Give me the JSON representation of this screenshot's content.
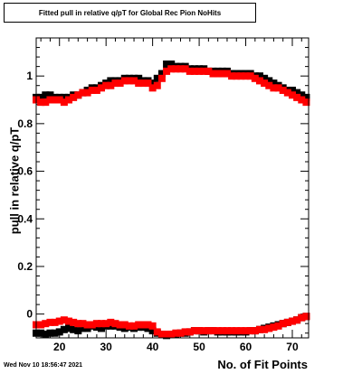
{
  "chart_data": {
    "type": "scatter",
    "title": "Fitted pull in relative q/pT for Global Rec Pion NoHits",
    "xlabel": "No. of Fit Points",
    "ylabel": "pull in relative q/pT",
    "xlim": [
      15,
      73.5
    ],
    "ylim": [
      -0.1,
      1.16
    ],
    "xticks": [
      "20",
      "30",
      "40",
      "50",
      "60",
      "70"
    ],
    "yticks": [
      "0",
      "0.2",
      "0.4",
      "0.6",
      "0.8",
      "1"
    ],
    "grid": false,
    "colors": {
      "black": "#000000",
      "red": "#ff0000"
    },
    "series": [
      {
        "color": "#000000",
        "x": [
          15,
          16,
          17,
          18,
          19,
          20,
          21,
          22,
          23,
          24,
          25,
          26,
          27,
          28,
          29,
          30,
          31,
          32,
          33,
          34,
          35,
          36,
          37,
          38,
          39,
          40,
          41,
          42,
          43,
          44,
          45,
          46,
          47,
          48,
          49,
          50,
          51,
          52,
          53,
          54,
          55,
          56,
          57,
          58,
          59,
          60,
          61,
          62,
          63,
          64,
          65,
          66,
          67,
          68,
          69,
          70,
          71,
          72,
          73
        ],
        "y": [
          0.91,
          0.91,
          0.92,
          0.92,
          0.91,
          0.91,
          0.91,
          0.91,
          0.92,
          0.92,
          0.93,
          0.94,
          0.95,
          0.95,
          0.96,
          0.97,
          0.98,
          0.98,
          0.98,
          0.99,
          0.99,
          0.99,
          0.99,
          0.98,
          0.98,
          0.97,
          0.99,
          1.01,
          1.05,
          1.05,
          1.04,
          1.04,
          1.04,
          1.03,
          1.03,
          1.03,
          1.03,
          1.02,
          1.02,
          1.02,
          1.02,
          1.02,
          1.01,
          1.01,
          1.01,
          1.01,
          1.01,
          1.0,
          1.0,
          0.99,
          0.98,
          0.97,
          0.96,
          0.95,
          0.94,
          0.94,
          0.93,
          0.92,
          0.91
        ]
      },
      {
        "color": "#ff0000",
        "x": [
          15,
          16,
          17,
          18,
          19,
          20,
          21,
          22,
          23,
          24,
          25,
          26,
          27,
          28,
          29,
          30,
          31,
          32,
          33,
          34,
          35,
          36,
          37,
          38,
          39,
          40,
          41,
          42,
          43,
          44,
          45,
          46,
          47,
          48,
          49,
          50,
          51,
          52,
          53,
          54,
          55,
          56,
          57,
          58,
          59,
          60,
          61,
          62,
          63,
          64,
          65,
          66,
          67,
          68,
          69,
          70,
          71,
          72,
          73
        ],
        "y": [
          0.9,
          0.89,
          0.89,
          0.9,
          0.9,
          0.9,
          0.89,
          0.9,
          0.91,
          0.92,
          0.93,
          0.93,
          0.94,
          0.94,
          0.95,
          0.96,
          0.96,
          0.97,
          0.97,
          0.98,
          0.98,
          0.98,
          0.97,
          0.97,
          0.97,
          0.95,
          0.96,
          0.99,
          1.02,
          1.03,
          1.03,
          1.03,
          1.03,
          1.02,
          1.02,
          1.02,
          1.02,
          1.02,
          1.01,
          1.01,
          1.01,
          1.01,
          1.0,
          1.0,
          1.0,
          1.0,
          1.0,
          0.99,
          0.98,
          0.97,
          0.96,
          0.95,
          0.95,
          0.94,
          0.93,
          0.92,
          0.91,
          0.9,
          0.89
        ]
      },
      {
        "color": "#000000",
        "x": [
          15,
          16,
          17,
          18,
          19,
          20,
          21,
          22,
          23,
          24,
          25,
          26,
          27,
          28,
          29,
          30,
          31,
          32,
          33,
          34,
          35,
          36,
          37,
          38,
          39,
          40,
          41,
          42,
          43,
          44,
          45,
          46,
          47,
          48,
          49,
          50,
          51,
          52,
          53,
          54,
          55,
          56,
          57,
          58,
          59,
          60,
          61,
          62,
          63,
          64,
          65,
          66,
          67,
          68,
          69,
          70,
          71,
          72,
          73
        ],
        "y": [
          -0.08,
          -0.08,
          -0.085,
          -0.08,
          -0.08,
          -0.075,
          -0.065,
          -0.06,
          -0.065,
          -0.07,
          -0.06,
          -0.06,
          -0.05,
          -0.055,
          -0.06,
          -0.05,
          -0.05,
          -0.05,
          -0.055,
          -0.06,
          -0.055,
          -0.06,
          -0.055,
          -0.055,
          -0.06,
          -0.07,
          -0.08,
          -0.085,
          -0.09,
          -0.085,
          -0.085,
          -0.08,
          -0.08,
          -0.075,
          -0.07,
          -0.07,
          -0.075,
          -0.07,
          -0.07,
          -0.075,
          -0.075,
          -0.075,
          -0.075,
          -0.075,
          -0.075,
          -0.075,
          -0.07,
          -0.07,
          -0.065,
          -0.06,
          -0.055,
          -0.05,
          -0.045,
          -0.04,
          -0.035,
          -0.03,
          -0.025,
          -0.015,
          -0.01
        ]
      },
      {
        "color": "#ff0000",
        "x": [
          15,
          16,
          17,
          18,
          19,
          20,
          21,
          22,
          23,
          24,
          25,
          26,
          27,
          28,
          29,
          30,
          31,
          32,
          33,
          34,
          35,
          36,
          37,
          38,
          39,
          40,
          41,
          42,
          43,
          44,
          45,
          46,
          47,
          48,
          49,
          50,
          51,
          52,
          53,
          54,
          55,
          56,
          57,
          58,
          59,
          60,
          61,
          62,
          63,
          64,
          65,
          66,
          67,
          68,
          69,
          70,
          71,
          72,
          73
        ],
        "y": [
          -0.045,
          -0.045,
          -0.04,
          -0.035,
          -0.035,
          -0.03,
          -0.025,
          -0.03,
          -0.035,
          -0.04,
          -0.04,
          -0.045,
          -0.045,
          -0.04,
          -0.04,
          -0.04,
          -0.035,
          -0.04,
          -0.045,
          -0.045,
          -0.05,
          -0.05,
          -0.045,
          -0.045,
          -0.045,
          -0.05,
          -0.075,
          -0.085,
          -0.085,
          -0.085,
          -0.08,
          -0.08,
          -0.075,
          -0.075,
          -0.07,
          -0.07,
          -0.07,
          -0.07,
          -0.07,
          -0.07,
          -0.07,
          -0.07,
          -0.07,
          -0.07,
          -0.07,
          -0.07,
          -0.07,
          -0.07,
          -0.065,
          -0.065,
          -0.06,
          -0.055,
          -0.05,
          -0.04,
          -0.035,
          -0.03,
          -0.025,
          -0.015,
          -0.01
        ]
      }
    ]
  },
  "footer": {
    "timestamp": "Wed Nov 10 18:56:47 2021"
  }
}
